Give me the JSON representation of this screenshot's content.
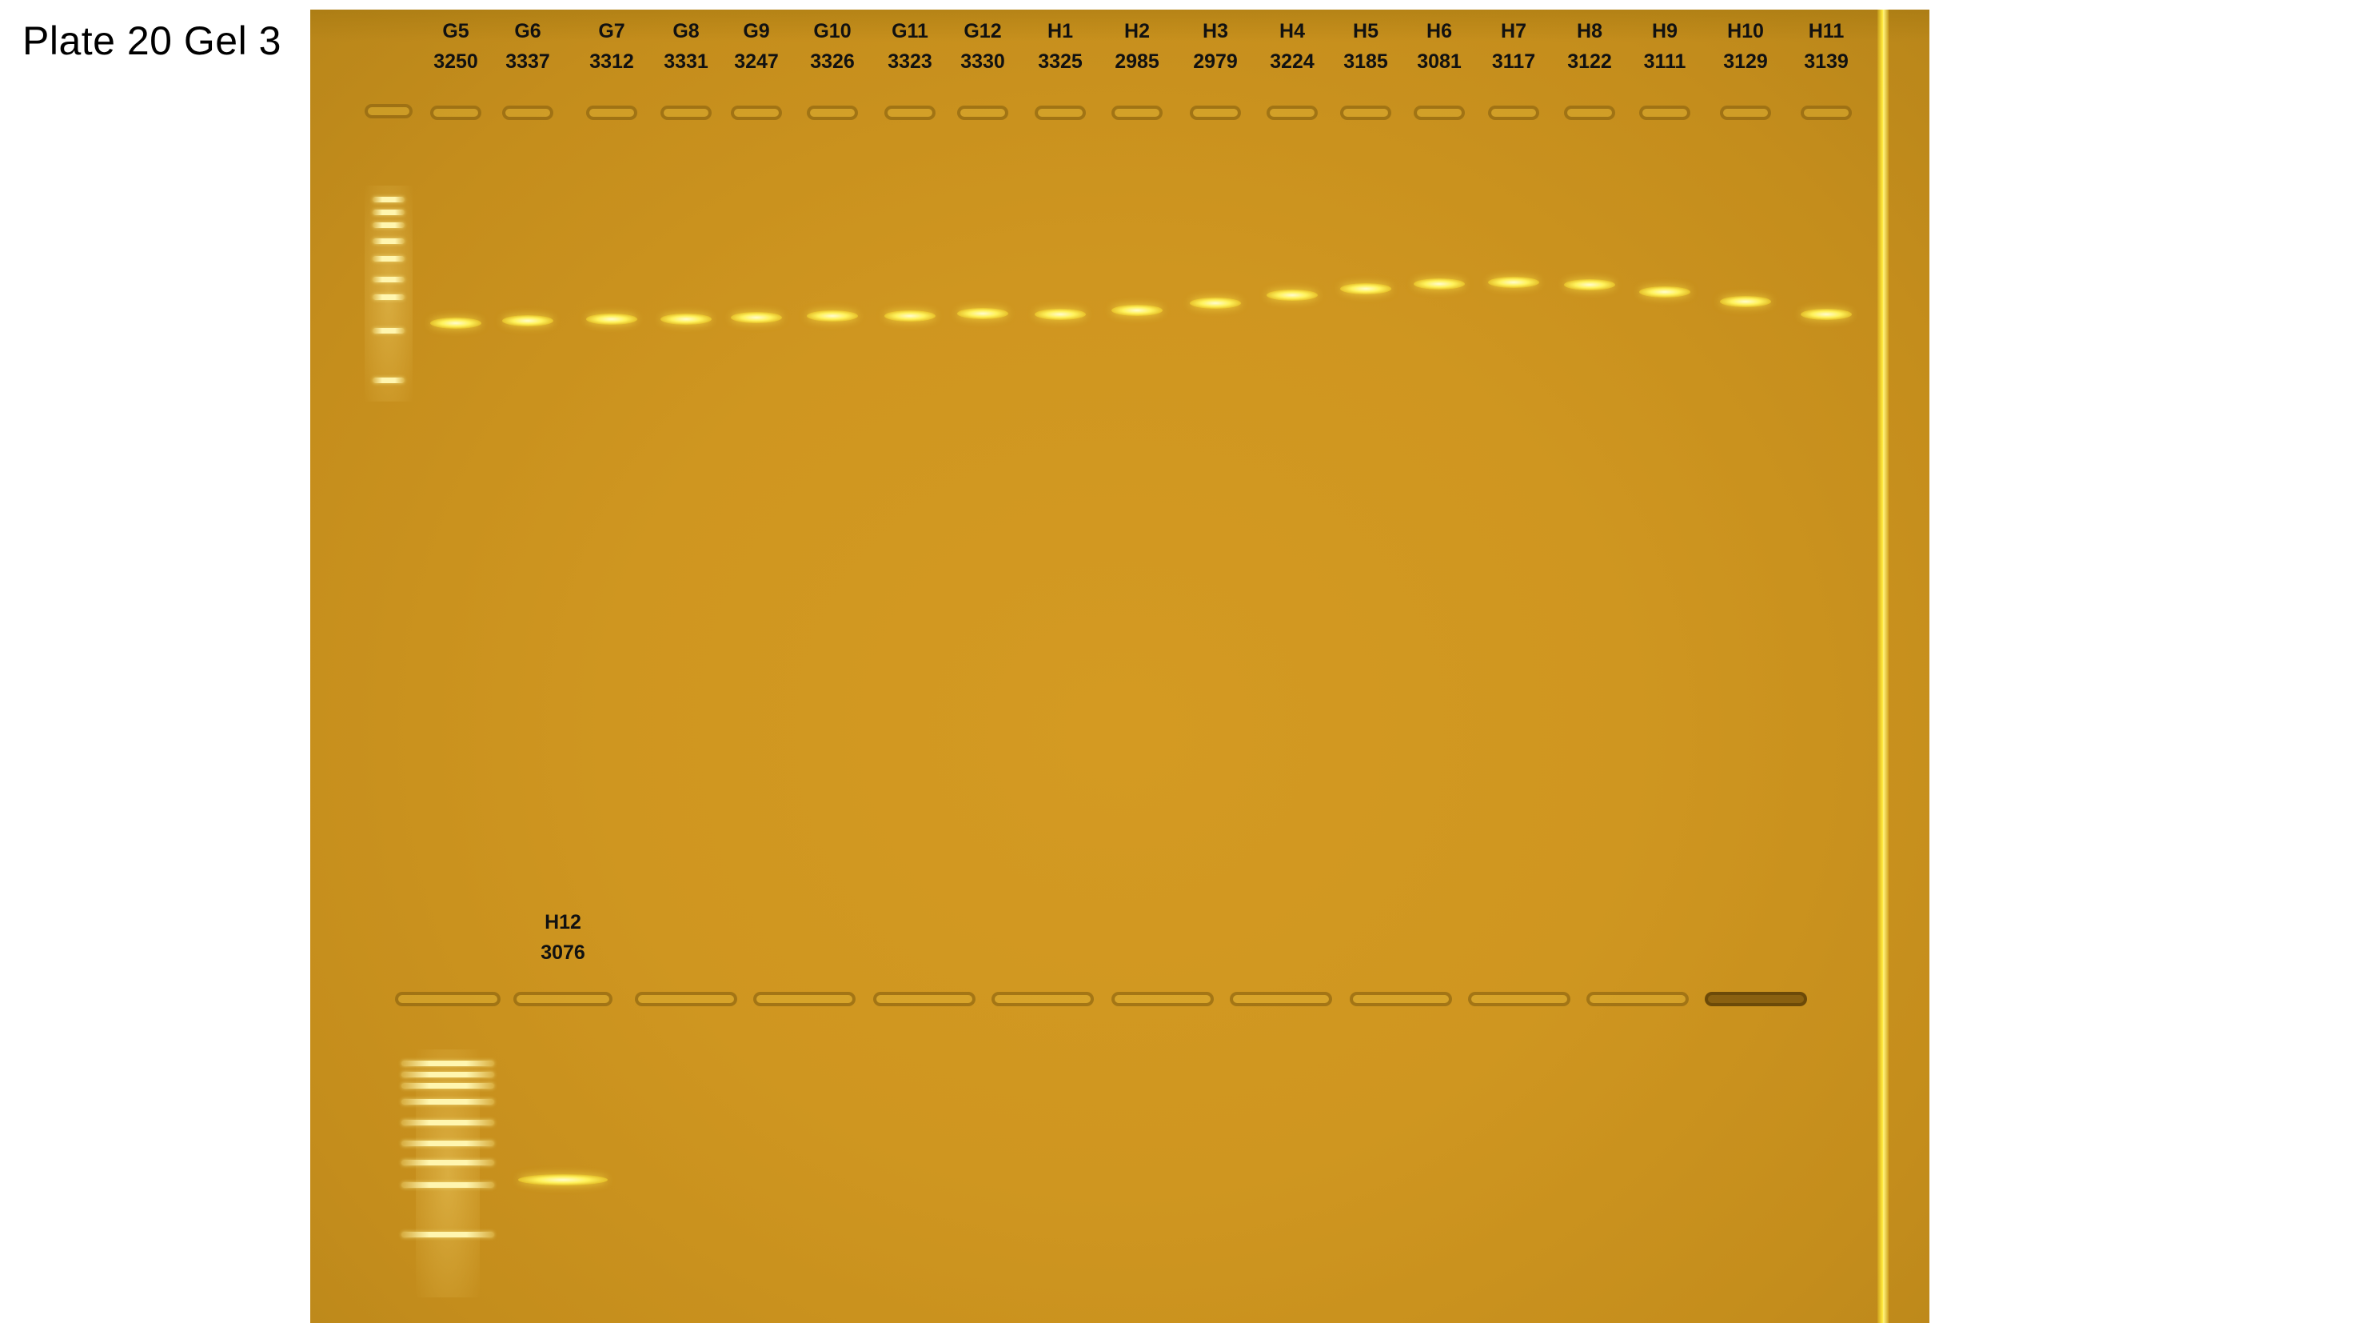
{
  "title": "Plate 20 Gel 3",
  "top_row": [
    {
      "well": "G5",
      "id": "3250"
    },
    {
      "well": "G6",
      "id": "3337"
    },
    {
      "well": "G7",
      "id": "3312"
    },
    {
      "well": "G8",
      "id": "3331"
    },
    {
      "well": "G9",
      "id": "3247"
    },
    {
      "well": "G10",
      "id": "3326"
    },
    {
      "well": "G11",
      "id": "3323"
    },
    {
      "well": "G12",
      "id": "3330"
    },
    {
      "well": "H1",
      "id": "3325"
    },
    {
      "well": "H2",
      "id": "2985"
    },
    {
      "well": "H3",
      "id": "2979"
    },
    {
      "well": "H4",
      "id": "3224"
    },
    {
      "well": "H5",
      "id": "3185"
    },
    {
      "well": "H6",
      "id": "3081"
    },
    {
      "well": "H7",
      "id": "3117"
    },
    {
      "well": "H8",
      "id": "3122"
    },
    {
      "well": "H9",
      "id": "3111"
    },
    {
      "well": "H10",
      "id": "3129"
    },
    {
      "well": "H11",
      "id": "3139"
    }
  ],
  "bottom_row": [
    {
      "well": "H12",
      "id": "3076"
    }
  ],
  "colors": {
    "gel": "#cf9620",
    "band": "#fff25a",
    "label": "#111111"
  }
}
